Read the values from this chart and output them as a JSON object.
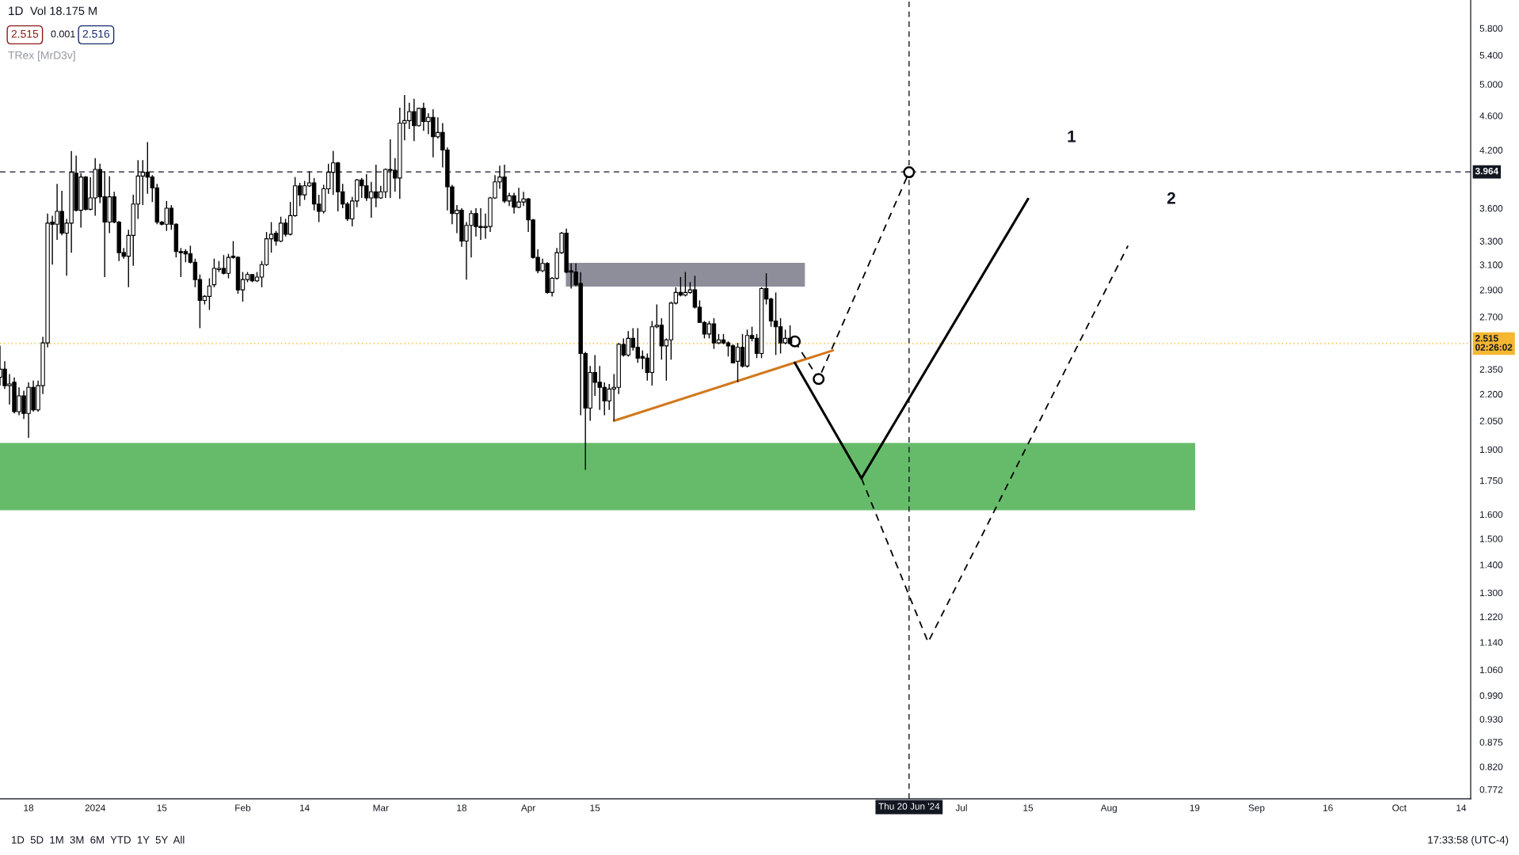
{
  "chart_data": {
    "type": "candlestick",
    "title": "1D",
    "color": "#000000",
    "x": [
      "2023-12-12",
      "2023-12-13",
      "2023-12-14",
      "2023-12-15",
      "2023-12-16",
      "2023-12-17",
      "2023-12-18",
      "2023-12-19",
      "2023-12-20",
      "2023-12-21",
      "2023-12-22",
      "2023-12-23",
      "2023-12-24",
      "2023-12-25",
      "2023-12-26",
      "2023-12-27",
      "2023-12-28",
      "2023-12-29",
      "2023-12-30",
      "2023-12-31",
      "2024-01-01",
      "2024-01-02",
      "2024-01-03",
      "2024-01-04",
      "2024-01-05",
      "2024-01-06",
      "2024-01-07",
      "2024-01-08",
      "2024-01-09",
      "2024-01-10",
      "2024-01-11",
      "2024-01-12",
      "2024-01-13",
      "2024-01-14",
      "2024-01-15",
      "2024-01-16",
      "2024-01-17",
      "2024-01-18",
      "2024-01-19",
      "2024-01-20",
      "2024-01-21",
      "2024-01-22",
      "2024-01-23",
      "2024-01-24",
      "2024-01-25",
      "2024-01-26",
      "2024-01-27",
      "2024-01-28",
      "2024-01-29",
      "2024-01-30",
      "2024-01-31",
      "2024-02-01",
      "2024-02-02",
      "2024-02-03",
      "2024-02-04",
      "2024-02-05",
      "2024-02-06",
      "2024-02-07",
      "2024-02-08",
      "2024-02-09",
      "2024-02-10",
      "2024-02-11",
      "2024-02-12",
      "2024-02-13",
      "2024-02-14",
      "2024-02-15",
      "2024-02-16",
      "2024-02-17",
      "2024-02-18",
      "2024-02-19",
      "2024-02-20",
      "2024-02-21",
      "2024-02-22",
      "2024-02-23",
      "2024-02-24",
      "2024-02-25",
      "2024-02-26",
      "2024-02-27",
      "2024-02-28",
      "2024-02-29",
      "2024-03-01",
      "2024-03-02",
      "2024-03-03",
      "2024-03-04",
      "2024-03-05",
      "2024-03-06",
      "2024-03-07",
      "2024-03-08",
      "2024-03-09",
      "2024-03-10",
      "2024-03-11",
      "2024-03-12",
      "2024-03-13",
      "2024-03-14",
      "2024-03-15",
      "2024-03-16",
      "2024-03-17",
      "2024-03-18",
      "2024-03-19",
      "2024-03-20",
      "2024-03-21",
      "2024-03-22",
      "2024-03-23",
      "2024-03-24",
      "2024-03-25",
      "2024-03-26",
      "2024-03-27",
      "2024-03-28",
      "2024-03-29",
      "2024-03-30",
      "2024-03-31",
      "2024-04-01",
      "2024-04-02",
      "2024-04-03",
      "2024-04-04",
      "2024-04-05",
      "2024-04-06",
      "2024-04-07",
      "2024-04-08",
      "2024-04-09",
      "2024-04-10",
      "2024-04-11",
      "2024-04-12",
      "2024-04-13",
      "2024-04-14",
      "2024-04-15",
      "2024-04-16",
      "2024-04-17",
      "2024-04-18",
      "2024-04-19",
      "2024-04-20",
      "2024-04-21",
      "2024-04-22",
      "2024-04-23",
      "2024-04-24",
      "2024-04-25",
      "2024-04-26",
      "2024-04-27",
      "2024-04-28",
      "2024-04-29",
      "2024-04-30",
      "2024-05-01",
      "2024-05-02",
      "2024-05-03",
      "2024-05-04",
      "2024-05-05",
      "2024-05-06",
      "2024-05-07",
      "2024-05-08",
      "2024-05-09",
      "2024-05-10",
      "2024-05-11",
      "2024-05-12",
      "2024-05-13",
      "2024-05-14",
      "2024-05-15",
      "2024-05-16",
      "2024-05-17",
      "2024-05-18",
      "2024-05-19",
      "2024-05-20",
      "2024-05-21",
      "2024-05-22",
      "2024-05-23",
      "2024-05-24",
      "2024-05-25",
      "2024-05-26"
    ],
    "ohlc": [
      [
        2.3,
        2.5,
        2.25,
        2.35
      ],
      [
        2.35,
        2.4,
        2.23,
        2.25
      ],
      [
        2.25,
        2.32,
        2.14,
        2.26
      ],
      [
        2.27,
        2.3,
        2.09,
        2.1
      ],
      [
        2.1,
        2.24,
        2.08,
        2.19
      ],
      [
        2.19,
        2.22,
        2.06,
        2.09
      ],
      [
        2.09,
        2.27,
        1.96,
        2.24
      ],
      [
        2.24,
        2.28,
        2.1,
        2.11
      ],
      [
        2.11,
        2.28,
        2.1,
        2.25
      ],
      [
        2.25,
        2.56,
        2.2,
        2.52
      ],
      [
        2.52,
        3.55,
        2.49,
        3.46
      ],
      [
        3.47,
        3.53,
        3.1,
        3.45
      ],
      [
        3.45,
        3.84,
        3.31,
        3.57
      ],
      [
        3.57,
        3.77,
        3.35,
        3.37
      ],
      [
        3.37,
        3.5,
        3.01,
        3.46
      ],
      [
        3.46,
        4.19,
        3.2,
        3.96
      ],
      [
        3.95,
        4.14,
        3.57,
        3.58
      ],
      [
        3.58,
        3.95,
        3.42,
        3.91
      ],
      [
        3.91,
        3.92,
        3.58,
        3.59
      ],
      [
        3.59,
        3.91,
        3.58,
        3.7
      ],
      [
        3.7,
        4.11,
        3.53,
        3.99
      ],
      [
        3.99,
        4.05,
        3.65,
        3.71
      ],
      [
        3.71,
        3.97,
        3.0,
        3.47
      ],
      [
        3.47,
        3.92,
        3.37,
        3.71
      ],
      [
        3.71,
        3.76,
        3.46,
        3.47
      ],
      [
        3.47,
        3.48,
        3.13,
        3.2
      ],
      [
        3.2,
        3.24,
        3.15,
        3.17
      ],
      [
        3.17,
        3.4,
        2.92,
        3.35
      ],
      [
        3.35,
        3.73,
        3.09,
        3.64
      ],
      [
        3.64,
        4.09,
        3.5,
        3.92
      ],
      [
        3.92,
        4.09,
        3.63,
        3.96
      ],
      [
        3.96,
        4.29,
        3.74,
        3.91
      ],
      [
        3.91,
        3.93,
        3.66,
        3.8
      ],
      [
        3.8,
        3.84,
        3.45,
        3.47
      ],
      [
        3.47,
        3.48,
        3.44,
        3.45
      ],
      [
        3.45,
        3.67,
        3.39,
        3.6
      ],
      [
        3.6,
        3.63,
        3.4,
        3.45
      ],
      [
        3.45,
        3.46,
        3.16,
        3.21
      ],
      [
        3.21,
        3.24,
        3.0,
        3.2
      ],
      [
        3.21,
        3.23,
        3.12,
        3.19
      ],
      [
        3.19,
        3.26,
        3.11,
        3.12
      ],
      [
        3.12,
        3.15,
        2.92,
        2.98
      ],
      [
        2.98,
        3.02,
        2.62,
        2.82
      ],
      [
        2.82,
        2.86,
        2.79,
        2.85
      ],
      [
        2.85,
        2.99,
        2.75,
        2.93
      ],
      [
        2.94,
        3.15,
        2.92,
        3.07
      ],
      [
        3.06,
        3.13,
        3.04,
        3.07
      ],
      [
        3.07,
        3.18,
        3.02,
        3.03
      ],
      [
        3.03,
        3.19,
        2.99,
        3.16
      ],
      [
        3.17,
        3.3,
        3.15,
        3.16
      ],
      [
        3.16,
        3.17,
        2.87,
        2.9
      ],
      [
        2.9,
        3.04,
        2.81,
        2.98
      ],
      [
        2.98,
        3.04,
        2.96,
        3.02
      ],
      [
        3.02,
        3.02,
        2.96,
        2.97
      ],
      [
        2.97,
        3.04,
        2.96,
        3.0
      ],
      [
        3.0,
        3.13,
        2.92,
        3.1
      ],
      [
        3.1,
        3.38,
        3.09,
        3.32
      ],
      [
        3.32,
        3.47,
        3.2,
        3.36
      ],
      [
        3.37,
        3.39,
        3.26,
        3.3
      ],
      [
        3.3,
        3.52,
        3.29,
        3.46
      ],
      [
        3.46,
        3.5,
        3.34,
        3.36
      ],
      [
        3.36,
        3.66,
        3.35,
        3.53
      ],
      [
        3.53,
        3.91,
        3.52,
        3.82
      ],
      [
        3.82,
        3.85,
        3.62,
        3.73
      ],
      [
        3.73,
        3.87,
        3.68,
        3.82
      ],
      [
        3.82,
        3.97,
        3.81,
        3.85
      ],
      [
        3.85,
        3.9,
        3.58,
        3.64
      ],
      [
        3.64,
        3.73,
        3.47,
        3.57
      ],
      [
        3.57,
        3.83,
        3.55,
        3.79
      ],
      [
        3.79,
        4.05,
        3.74,
        3.96
      ],
      [
        3.96,
        4.19,
        3.73,
        4.06
      ],
      [
        4.06,
        4.07,
        3.57,
        3.76
      ],
      [
        3.76,
        3.84,
        3.6,
        3.64
      ],
      [
        3.64,
        3.66,
        3.48,
        3.5
      ],
      [
        3.5,
        3.71,
        3.43,
        3.67
      ],
      [
        3.67,
        3.89,
        3.61,
        3.88
      ],
      [
        3.88,
        3.9,
        3.7,
        3.82
      ],
      [
        3.82,
        3.94,
        3.67,
        3.7
      ],
      [
        3.7,
        3.86,
        3.51,
        3.76
      ],
      [
        3.76,
        4.04,
        3.61,
        3.7
      ],
      [
        3.7,
        3.82,
        3.69,
        3.76
      ],
      [
        3.76,
        4.0,
        3.7,
        3.99
      ],
      [
        3.99,
        4.32,
        3.7,
        3.98
      ],
      [
        3.98,
        4.11,
        3.76,
        3.9
      ],
      [
        3.9,
        4.7,
        3.69,
        4.51
      ],
      [
        4.51,
        4.86,
        4.31,
        4.54
      ],
      [
        4.54,
        4.76,
        4.44,
        4.65
      ],
      [
        4.65,
        4.81,
        4.3,
        4.48
      ],
      [
        4.48,
        4.7,
        4.47,
        4.69
      ],
      [
        4.69,
        4.76,
        4.42,
        4.53
      ],
      [
        4.53,
        4.63,
        4.38,
        4.58
      ],
      [
        4.58,
        4.68,
        4.12,
        4.35
      ],
      [
        4.35,
        4.58,
        4.33,
        4.4
      ],
      [
        4.4,
        4.51,
        4.01,
        4.2
      ],
      [
        4.2,
        4.23,
        3.58,
        3.81
      ],
      [
        3.81,
        3.83,
        3.45,
        3.55
      ],
      [
        3.55,
        3.63,
        3.37,
        3.58
      ],
      [
        3.58,
        3.6,
        3.25,
        3.3
      ],
      [
        3.3,
        3.47,
        2.98,
        3.44
      ],
      [
        3.44,
        3.58,
        3.16,
        3.55
      ],
      [
        3.55,
        3.6,
        3.34,
        3.43
      ],
      [
        3.43,
        3.6,
        3.31,
        3.42
      ],
      [
        3.42,
        3.55,
        3.32,
        3.43
      ],
      [
        3.43,
        3.71,
        3.38,
        3.7
      ],
      [
        3.7,
        3.93,
        3.69,
        3.86
      ],
      [
        3.86,
        4.03,
        3.79,
        3.91
      ],
      [
        3.91,
        4.04,
        3.65,
        3.67
      ],
      [
        3.67,
        3.75,
        3.62,
        3.72
      ],
      [
        3.72,
        3.75,
        3.55,
        3.61
      ],
      [
        3.61,
        3.8,
        3.6,
        3.66
      ],
      [
        3.66,
        3.76,
        3.62,
        3.69
      ],
      [
        3.69,
        3.7,
        3.38,
        3.49
      ],
      [
        3.49,
        3.5,
        3.15,
        3.16
      ],
      [
        3.16,
        3.23,
        3.03,
        3.05
      ],
      [
        3.05,
        3.15,
        3.04,
        3.11
      ],
      [
        3.11,
        3.12,
        2.87,
        2.88
      ],
      [
        2.88,
        3.0,
        2.85,
        2.99
      ],
      [
        2.99,
        3.24,
        2.98,
        3.2
      ],
      [
        3.2,
        3.38,
        3.19,
        3.37
      ],
      [
        3.37,
        3.41,
        3.03,
        3.04
      ],
      [
        3.05,
        3.11,
        2.91,
        3.04
      ],
      [
        3.04,
        3.11,
        2.93,
        2.94
      ],
      [
        2.95,
        3.04,
        2.08,
        2.45
      ],
      [
        2.45,
        2.46,
        1.8,
        2.12
      ],
      [
        2.12,
        2.37,
        2.05,
        2.33
      ],
      [
        2.33,
        2.44,
        2.19,
        2.27
      ],
      [
        2.27,
        2.37,
        2.11,
        2.24
      ],
      [
        2.24,
        2.27,
        2.08,
        2.16
      ],
      [
        2.16,
        2.26,
        2.11,
        2.23
      ],
      [
        2.23,
        2.32,
        2.05,
        2.24
      ],
      [
        2.24,
        2.52,
        2.2,
        2.51
      ],
      [
        2.51,
        2.55,
        2.43,
        2.44
      ],
      [
        2.44,
        2.6,
        2.43,
        2.55
      ],
      [
        2.55,
        2.62,
        2.47,
        2.49
      ],
      [
        2.49,
        2.62,
        2.39,
        2.42
      ],
      [
        2.43,
        2.47,
        2.35,
        2.42
      ],
      [
        2.42,
        2.45,
        2.28,
        2.33
      ],
      [
        2.33,
        2.67,
        2.25,
        2.63
      ],
      [
        2.63,
        2.79,
        2.62,
        2.64
      ],
      [
        2.64,
        2.69,
        2.41,
        2.5
      ],
      [
        2.5,
        2.55,
        2.28,
        2.54
      ],
      [
        2.54,
        2.81,
        2.41,
        2.8
      ],
      [
        2.8,
        2.92,
        2.79,
        2.88
      ],
      [
        2.88,
        3.0,
        2.85,
        2.86
      ],
      [
        2.86,
        3.04,
        2.85,
        2.88
      ],
      [
        2.88,
        2.96,
        2.87,
        2.9
      ],
      [
        2.9,
        3.01,
        2.76,
        2.77
      ],
      [
        2.77,
        2.82,
        2.66,
        2.66
      ],
      [
        2.66,
        2.67,
        2.55,
        2.58
      ],
      [
        2.58,
        2.67,
        2.55,
        2.65
      ],
      [
        2.65,
        2.69,
        2.48,
        2.52
      ],
      [
        2.52,
        2.58,
        2.51,
        2.54
      ],
      [
        2.54,
        2.58,
        2.51,
        2.52
      ],
      [
        2.52,
        2.53,
        2.43,
        2.5
      ],
      [
        2.5,
        2.51,
        2.39,
        2.39
      ],
      [
        2.4,
        2.52,
        2.27,
        2.49
      ],
      [
        2.49,
        2.58,
        2.36,
        2.37
      ],
      [
        2.37,
        2.61,
        2.36,
        2.57
      ],
      [
        2.57,
        2.63,
        2.53,
        2.55
      ],
      [
        2.55,
        2.58,
        2.42,
        2.45
      ],
      [
        2.45,
        2.92,
        2.42,
        2.91
      ],
      [
        2.91,
        3.03,
        2.79,
        2.83
      ],
      [
        2.83,
        2.84,
        2.63,
        2.67
      ],
      [
        2.67,
        2.88,
        2.44,
        2.63
      ],
      [
        2.63,
        2.69,
        2.45,
        2.52
      ],
      [
        2.52,
        2.61,
        2.51,
        2.55
      ],
      [
        2.55,
        2.64,
        2.51,
        2.515
      ]
    ],
    "series": [
      {
        "type": "area",
        "x": [
          "2023-12-12",
          "2024-08-19"
        ],
        "values": [
          null,
          null
        ],
        "lower": [
          1.62,
          1.62
        ],
        "upper": [
          1.93,
          1.93
        ],
        "color": "#66bb6a"
      },
      {
        "type": "area",
        "x": [
          "2024-04-09",
          "2024-05-29"
        ],
        "values": [
          null,
          null
        ],
        "lower": [
          2.93,
          2.93
        ],
        "upper": [
          3.11,
          3.11
        ],
        "color": "#8d8e99"
      },
      {
        "type": "line",
        "x": [
          "2024-04-19",
          "2024-06-04"
        ],
        "values": [
          2.05,
          2.47
        ],
        "color": "#d2781c",
        "line_style": "solid"
      },
      {
        "type": "line",
        "x": [
          "2024-05-27",
          "2024-06-10",
          "2024-07-15"
        ],
        "values": [
          2.39,
          1.76,
          3.69
        ],
        "color": "#000000",
        "line_style": "solid"
      },
      {
        "type": "line",
        "x": [
          "2024-05-27",
          "2024-06-01",
          "2024-06-20"
        ],
        "values": [
          2.53,
          2.29,
          3.96
        ],
        "color": "#000000",
        "line_style": "dashed",
        "marker": "circle"
      },
      {
        "type": "line",
        "x": [
          "2024-06-10",
          "2024-06-24",
          "2024-08-05"
        ],
        "values": [
          1.76,
          1.14,
          3.26
        ],
        "color": "#000000",
        "line_style": "dashed"
      }
    ],
    "xlim": [
      "2023-12-12",
      "2024-10-16"
    ],
    "ylim": [
      0.753,
      6.25
    ],
    "log": true,
    "xticks": [
      {
        "value": "2023-12-18",
        "label": "18"
      },
      {
        "value": "2024-01-01",
        "label": "2024"
      },
      {
        "value": "2024-01-15",
        "label": "15"
      },
      {
        "value": "2024-02-01",
        "label": "Feb"
      },
      {
        "value": "2024-02-14",
        "label": "14"
      },
      {
        "value": "2024-03-01",
        "label": "Mar"
      },
      {
        "value": "2024-03-18",
        "label": "18"
      },
      {
        "value": "2024-04-01",
        "label": "Apr"
      },
      {
        "value": "2024-04-15",
        "label": "15"
      },
      {
        "value": "2024-07-01",
        "label": "Jul"
      },
      {
        "value": "2024-07-15",
        "label": "15"
      },
      {
        "value": "2024-08-01",
        "label": "Aug"
      },
      {
        "value": "2024-08-19",
        "label": "19"
      },
      {
        "value": "2024-09-01",
        "label": "Sep"
      },
      {
        "value": "2024-09-16",
        "label": "16"
      },
      {
        "value": "2024-10-01",
        "label": "Oct"
      },
      {
        "value": "2024-10-14",
        "label": "14"
      }
    ],
    "yticks": [
      {
        "value": 5.8,
        "label": "5.800"
      },
      {
        "value": 5.4,
        "label": "5.400"
      },
      {
        "value": 5.0,
        "label": "5.000"
      },
      {
        "value": 4.6,
        "label": "4.600"
      },
      {
        "value": 4.2,
        "label": "4.200"
      },
      {
        "value": 3.6,
        "label": "3.600"
      },
      {
        "value": 3.3,
        "label": "3.300"
      },
      {
        "value": 3.1,
        "label": "3.100"
      },
      {
        "value": 2.9,
        "label": "2.900"
      },
      {
        "value": 2.7,
        "label": "2.700"
      },
      {
        "value": 2.35,
        "label": "2.350"
      },
      {
        "value": 2.2,
        "label": "2.200"
      },
      {
        "value": 2.05,
        "label": "2.050"
      },
      {
        "value": 1.9,
        "label": "1.900"
      },
      {
        "value": 1.75,
        "label": "1.750"
      },
      {
        "value": 1.6,
        "label": "1.600"
      },
      {
        "value": 1.5,
        "label": "1.500"
      },
      {
        "value": 1.4,
        "label": "1.400"
      },
      {
        "value": 1.3,
        "label": "1.300"
      },
      {
        "value": 1.22,
        "label": "1.220"
      },
      {
        "value": 1.14,
        "label": "1.140"
      },
      {
        "value": 1.06,
        "label": "1.060"
      },
      {
        "value": 0.99,
        "label": "0.990"
      },
      {
        "value": 0.93,
        "label": "0.930"
      },
      {
        "value": 0.875,
        "label": "0.875"
      },
      {
        "value": 0.82,
        "label": "0.820"
      },
      {
        "value": 0.772,
        "label": "0.772"
      }
    ],
    "ref_lines": [
      {
        "axis": "y",
        "value": 3.964,
        "label": "3.964",
        "color": "#131722",
        "line_style": "dashed"
      },
      {
        "axis": "x",
        "value": "2024-06-20",
        "label": "Thu 20 Jun '24",
        "color": "#131722",
        "line_style": "dashed"
      },
      {
        "axis": "y",
        "value": 2.515,
        "label": "2.515\n02:26:02",
        "color": "#f5b731",
        "line_style": "dotted"
      }
    ],
    "annotations": [
      "Vol 18.175 M",
      "2.515",
      "0.001",
      "2.516",
      "TRex [MrD3v]",
      "1D  5D  1M  3M  6M  YTD  1Y  5Y  All",
      "17:33:58 (UTC-4)",
      "1",
      "2"
    ]
  }
}
